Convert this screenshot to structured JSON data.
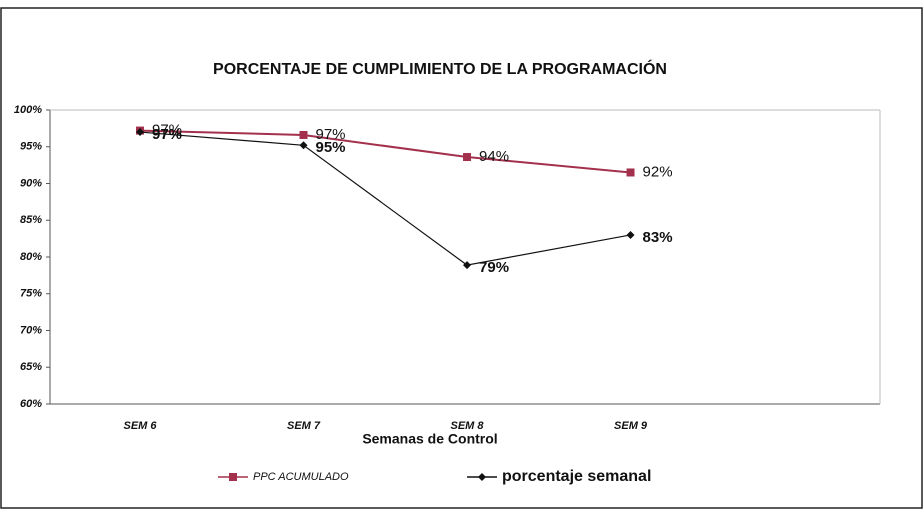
{
  "chart_data": {
    "type": "line",
    "title": "PORCENTAJE DE CUMPLIMIENTO DE LA PROGRAMACIÓN",
    "x_label": "Semanas de Control",
    "categories": [
      "SEM 6",
      "SEM 7",
      "SEM 8",
      "SEM 9",
      null
    ],
    "series": [
      {
        "name": "PPC ACUMULADO",
        "color": "#a3304c",
        "marker": "square",
        "values": [
          97.2,
          96.6,
          93.6,
          91.5,
          null
        ],
        "value_labels": [
          "97%",
          "97%",
          "94%",
          "92%",
          null
        ]
      },
      {
        "name": "porcentaje semanal",
        "color": "#111111",
        "marker": "diamond",
        "values": [
          97,
          95.2,
          78.9,
          83,
          null
        ],
        "value_labels": [
          "97%",
          "95%",
          "79%",
          "83%",
          null
        ]
      }
    ],
    "ylim": [
      60,
      100
    ],
    "yticks": [
      {
        "value": 60,
        "label": "60%"
      },
      {
        "value": 65,
        "label": "65%"
      },
      {
        "value": 70,
        "label": "70%"
      },
      {
        "value": 75,
        "label": "75%"
      },
      {
        "value": 80,
        "label": "80%"
      },
      {
        "value": 85,
        "label": "85%"
      },
      {
        "value": 90,
        "label": "90%"
      },
      {
        "value": 95,
        "label": "95%"
      },
      {
        "value": 100,
        "label": "100%"
      }
    ],
    "legend": "bottom"
  }
}
